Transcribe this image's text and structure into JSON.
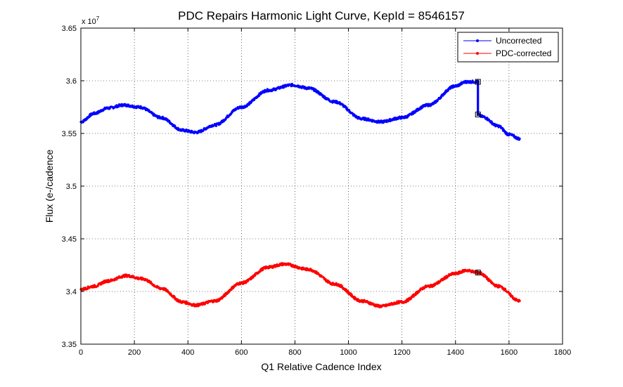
{
  "chart_data": {
    "type": "line",
    "title": "PDC Repairs Harmonic Light Curve, KepId = 8546157",
    "xlabel": "Q1 Relative Cadence Index",
    "ylabel": "Flux (e-/cadence",
    "y_multiplier_label": "x 10",
    "y_multiplier_exponent": "7",
    "xlim": [
      0,
      1800
    ],
    "ylim": [
      3.35,
      3.65
    ],
    "x_ticks": [
      0,
      200,
      400,
      600,
      800,
      1000,
      1200,
      1400,
      1600,
      1800
    ],
    "y_ticks": [
      3.35,
      3.4,
      3.45,
      3.5,
      3.55,
      3.6,
      3.65
    ],
    "x_tick_labels": [
      "0",
      "200",
      "400",
      "600",
      "800",
      "1000",
      "1200",
      "1400",
      "1600",
      "1800"
    ],
    "y_tick_labels": [
      "3.35",
      "3.4",
      "3.45",
      "3.5",
      "3.55",
      "3.6",
      "3.65"
    ],
    "grid": true,
    "legend_position": "top-right",
    "series": [
      {
        "name": "Uncorrected",
        "color": "#0000ff",
        "x": [
          0,
          50,
          100,
          160,
          220,
          300,
          380,
          430,
          500,
          600,
          700,
          790,
          850,
          950,
          1050,
          1120,
          1200,
          1300,
          1400,
          1440,
          1484,
          1484,
          1500,
          1560,
          1600,
          1640
        ],
        "y": [
          3.561,
          3.569,
          3.574,
          3.577,
          3.575,
          3.565,
          3.553,
          3.551,
          3.558,
          3.575,
          3.591,
          3.596,
          3.593,
          3.58,
          3.564,
          3.561,
          3.565,
          3.577,
          3.595,
          3.599,
          3.599,
          3.568,
          3.566,
          3.557,
          3.549,
          3.545
        ]
      },
      {
        "name": "PDC-corrected",
        "color": "#ff0000",
        "x": [
          0,
          50,
          100,
          170,
          230,
          300,
          380,
          430,
          500,
          600,
          700,
          760,
          850,
          950,
          1050,
          1120,
          1200,
          1300,
          1400,
          1440,
          1484,
          1560,
          1640
        ],
        "y": [
          3.402,
          3.405,
          3.41,
          3.415,
          3.412,
          3.403,
          3.39,
          3.387,
          3.391,
          3.408,
          3.423,
          3.426,
          3.421,
          3.407,
          3.391,
          3.386,
          3.39,
          3.405,
          3.417,
          3.42,
          3.418,
          3.405,
          3.391
        ]
      }
    ],
    "markers": {
      "uncorrected": [
        [
          1484,
          3.599
        ],
        [
          1484,
          3.568
        ]
      ],
      "corrected": [
        [
          1484,
          3.418
        ]
      ]
    }
  }
}
